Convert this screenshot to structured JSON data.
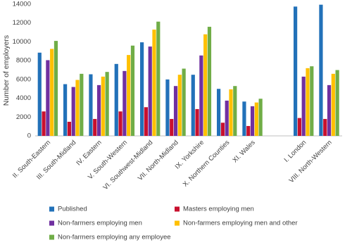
{
  "chart_data": {
    "type": "bar",
    "y_label": "Number of employers",
    "categories": [
      "II. South-Eastern",
      "III. South-Midland",
      "IV. Eastern",
      "V. South-Western",
      "VI. Southwest-Midland",
      "VII. North-Midland",
      "IX. Yorkshire",
      "X. Northern Counties",
      "XI. Wales",
      null,
      "I. London",
      "VIII. North-Western"
    ],
    "series": [
      {
        "name": "Published",
        "color": "#2271b9",
        "values": [
          8850,
          5500,
          6550,
          7650,
          9950,
          6000,
          6500,
          5000,
          3650,
          null,
          13750,
          13950
        ]
      },
      {
        "name": "Masters employing men",
        "color": "#c8102e",
        "values": [
          2600,
          1500,
          1800,
          2600,
          3050,
          1800,
          2850,
          1400,
          1050,
          null,
          1900,
          1800
        ]
      },
      {
        "name": "Non-farmers employing men",
        "color": "#7030a0",
        "values": [
          8050,
          5200,
          5400,
          6900,
          9500,
          5300,
          8550,
          3750,
          3150,
          null,
          6300,
          5400
        ]
      },
      {
        "name": "Non-farmers employing men and other",
        "color": "#ffc000",
        "values": [
          9250,
          5950,
          6300,
          8600,
          11300,
          6500,
          10800,
          4950,
          3550,
          null,
          7200,
          6600
        ]
      },
      {
        "name": "Non-farmers employing any employee",
        "color": "#70ad47",
        "values": [
          10100,
          6600,
          6800,
          9600,
          12150,
          7150,
          11600,
          5300,
          3950,
          null,
          7400,
          7000
        ]
      }
    ],
    "ylim": [
      0,
      14000
    ],
    "yticks": [
      0,
      2000,
      4000,
      6000,
      8000,
      10000,
      12000,
      14000
    ],
    "grid": false
  }
}
